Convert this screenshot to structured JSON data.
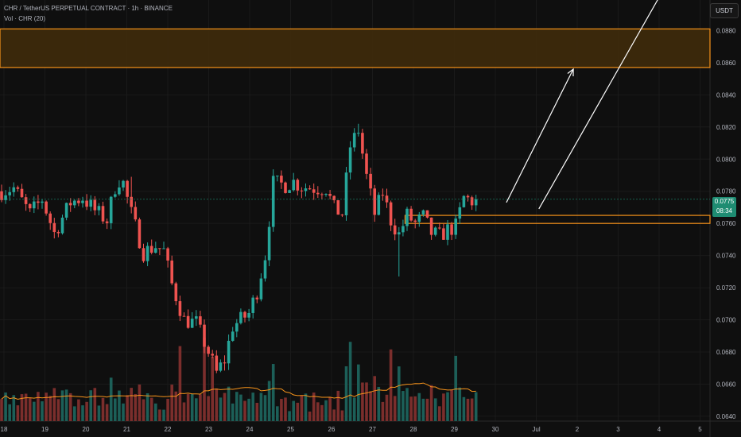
{
  "header": {
    "symbol_line": "CHR / TetherUS PERPETUAL CONTRACT · 1h · BINANCE",
    "volume_line": "Vol · CHR (20)"
  },
  "currency_button": "USDT",
  "last_price": {
    "value": "0.0775",
    "countdown": "08:34"
  },
  "colors": {
    "background": "#0f0f0f",
    "up": "#26a69a",
    "down": "#ef5350",
    "zone_stroke": "#f7931a",
    "zone_fill": "#3d2a0c",
    "vol_ma": "#f7931a",
    "arrow": "#ffffff",
    "price_tag": "#1e8c72"
  },
  "chart_data": {
    "type": "candlestick",
    "timeframe": "1h",
    "y_axis": {
      "ylim": [
        0.0637,
        0.0899
      ],
      "ticks": [
        "0.0880",
        "0.0860",
        "0.0840",
        "0.0820",
        "0.0800",
        "0.0780",
        "0.0760",
        "0.0740",
        "0.0720",
        "0.0700",
        "0.0680",
        "0.0660",
        "0.0640"
      ]
    },
    "x_axis": {
      "tick_labels": [
        "18",
        "19",
        "20",
        "21",
        "22",
        "23",
        "24",
        "25",
        "26",
        "27",
        "28",
        "29",
        "30",
        "Jul",
        "2",
        "3",
        "4",
        "5"
      ]
    },
    "price_path": [
      [
        0,
        0.078
      ],
      [
        3,
        0.0782
      ],
      [
        7,
        0.0766
      ],
      [
        10,
        0.0775
      ],
      [
        13,
        0.0754
      ],
      [
        17,
        0.0773
      ],
      [
        20,
        0.0776
      ],
      [
        23,
        0.0768
      ],
      [
        26,
        0.0762
      ],
      [
        28.5,
        0.0788
      ],
      [
        30,
        0.0785
      ],
      [
        32,
        0.0766
      ],
      [
        35,
        0.0742
      ],
      [
        38,
        0.0746
      ],
      [
        40,
        0.0743
      ],
      [
        42,
        0.0722
      ],
      [
        45,
        0.07
      ],
      [
        48,
        0.0698
      ],
      [
        51,
        0.068
      ],
      [
        53,
        0.0667
      ],
      [
        55,
        0.0675
      ],
      [
        57,
        0.0696
      ],
      [
        61,
        0.0704
      ],
      [
        63,
        0.0718
      ],
      [
        65,
        0.074
      ],
      [
        67,
        0.0785
      ],
      [
        70,
        0.0784
      ],
      [
        72,
        0.0786
      ],
      [
        74,
        0.0783
      ],
      [
        77,
        0.0782
      ],
      [
        80,
        0.0782
      ],
      [
        82,
        0.0769
      ],
      [
        84,
        0.0766
      ],
      [
        86,
        0.0808
      ],
      [
        88,
        0.0818
      ],
      [
        90,
        0.0789
      ],
      [
        92,
        0.0766
      ],
      [
        94,
        0.0779
      ],
      [
        96,
        0.0762
      ],
      [
        98,
        0.0753
      ],
      [
        100,
        0.0765
      ],
      [
        102,
        0.076
      ],
      [
        104,
        0.0764
      ],
      [
        106,
        0.0754
      ],
      [
        108,
        0.0752
      ],
      [
        110,
        0.0756
      ],
      [
        112,
        0.0758
      ],
      [
        114,
        0.0776
      ],
      [
        116,
        0.0774
      ],
      [
        117,
        0.0775
      ]
    ],
    "last_close": 0.0775,
    "zones": [
      {
        "low": 0.0857,
        "high": 0.0881,
        "x_from": 0,
        "x_to": 175,
        "filled": true
      },
      {
        "low": 0.076,
        "high": 0.0765,
        "x_from": 99.5,
        "x_to": 175,
        "filled": false
      }
    ],
    "arrows": [
      {
        "from": [
          124.5,
          0.0773
        ],
        "to": [
          141,
          0.0856
        ],
        "head": true
      },
      {
        "from": [
          132.5,
          0.0769
        ],
        "to": [
          162,
          0.09
        ],
        "head": false
      }
    ],
    "volume": {
      "ma_period": 20,
      "ma_color": "#f7931a"
    }
  }
}
